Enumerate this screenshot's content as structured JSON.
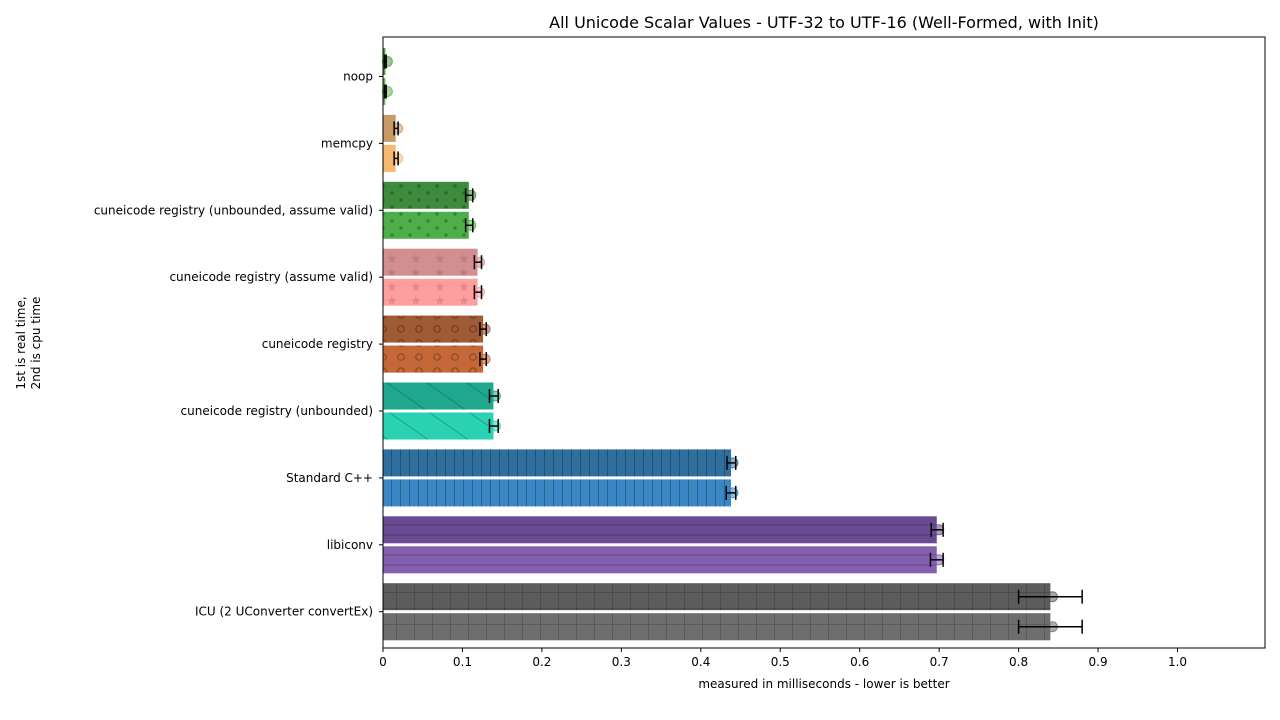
{
  "chart_data": {
    "type": "bar",
    "orientation": "horizontal",
    "title": "All Unicode Scalar Values - UTF-32 to UTF-16 (Well-Formed, with Init)",
    "xlabel": "measured in milliseconds - lower is better",
    "ylabel_line1": "1st is real time,",
    "ylabel_line2": "2nd is cpu time",
    "xlim": [
      0,
      1.1
    ],
    "xticks": [
      "0",
      "0.1",
      "0.2",
      "0.3",
      "0.4",
      "0.5",
      "0.6",
      "0.7",
      "0.8",
      "0.9",
      "1.0"
    ],
    "grid": false,
    "categories": [
      "noop",
      "memcpy",
      "cuneicode registry (unbounded, assume valid)",
      "cuneicode registry (assume valid)",
      "cuneicode registry",
      "cuneicode registry (unbounded)",
      "Standard C++",
      "libiconv",
      "ICU (2 UConverter convertEx)"
    ],
    "series": [
      {
        "name": "real time",
        "values": [
          0.003,
          0.016,
          0.108,
          0.119,
          0.126,
          0.139,
          0.438,
          0.697,
          0.84
        ]
      },
      {
        "name": "cpu time",
        "values": [
          0.003,
          0.016,
          0.108,
          0.119,
          0.126,
          0.139,
          0.438,
          0.697,
          0.84
        ]
      }
    ],
    "errors": {
      "real": [
        [
          0.002,
          0.004
        ],
        [
          0.014,
          0.019
        ],
        [
          0.104,
          0.113
        ],
        [
          0.115,
          0.124
        ],
        [
          0.122,
          0.13
        ],
        [
          0.134,
          0.145
        ],
        [
          0.433,
          0.444
        ],
        [
          0.69,
          0.705
        ],
        [
          0.8,
          0.88
        ]
      ],
      "cpu": [
        [
          0.002,
          0.004
        ],
        [
          0.014,
          0.019
        ],
        [
          0.104,
          0.113
        ],
        [
          0.115,
          0.124
        ],
        [
          0.122,
          0.13
        ],
        [
          0.134,
          0.145
        ],
        [
          0.432,
          0.444
        ],
        [
          0.689,
          0.705
        ],
        [
          0.8,
          0.88
        ]
      ]
    },
    "colors": {
      "real": [
        "#4c9a3f",
        "#c79a67",
        "#3d8b3d",
        "#d38f8f",
        "#a05a34",
        "#20a88e",
        "#2f6f9e",
        "#6a4b93",
        "#5c5c5c"
      ],
      "cpu": [
        "#62b84f",
        "#f5b971",
        "#4daf4a",
        "#ff9e9e",
        "#c4683a",
        "#29d2b3",
        "#3b86c4",
        "#8560b0",
        "#6e6e6e"
      ]
    },
    "hatches": [
      "none",
      "none",
      "dots",
      "stars",
      "circles",
      "diagonal",
      "vertical",
      "horizontal",
      "grid"
    ]
  }
}
